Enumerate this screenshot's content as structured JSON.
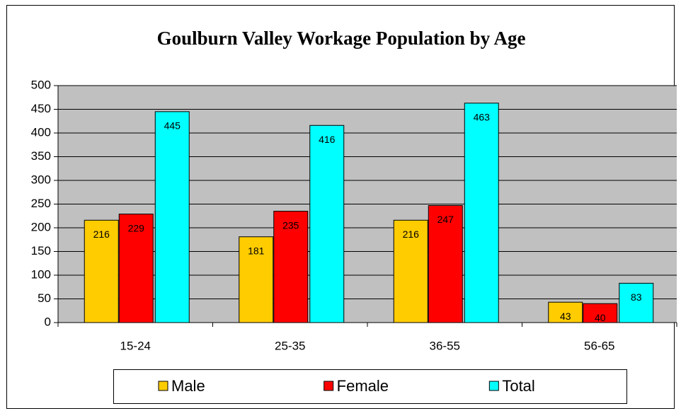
{
  "chart_data": {
    "type": "bar",
    "title": "Goulburn Valley Workage Population by Age",
    "categories": [
      "15-24",
      "25-35",
      "36-55",
      "56-65"
    ],
    "series": [
      {
        "name": "Male",
        "color": "#ffcc00",
        "values": [
          216,
          181,
          216,
          43
        ]
      },
      {
        "name": "Female",
        "color": "#ff0000",
        "values": [
          229,
          235,
          247,
          40
        ]
      },
      {
        "name": "Total",
        "color": "#00ffff",
        "values": [
          445,
          416,
          463,
          83
        ]
      }
    ],
    "ylim": [
      0,
      500
    ],
    "yticks": [
      0,
      50,
      100,
      150,
      200,
      250,
      300,
      350,
      400,
      450,
      500
    ],
    "grid": true,
    "legend": "bottom",
    "plot_background": "#c0c0c0"
  }
}
